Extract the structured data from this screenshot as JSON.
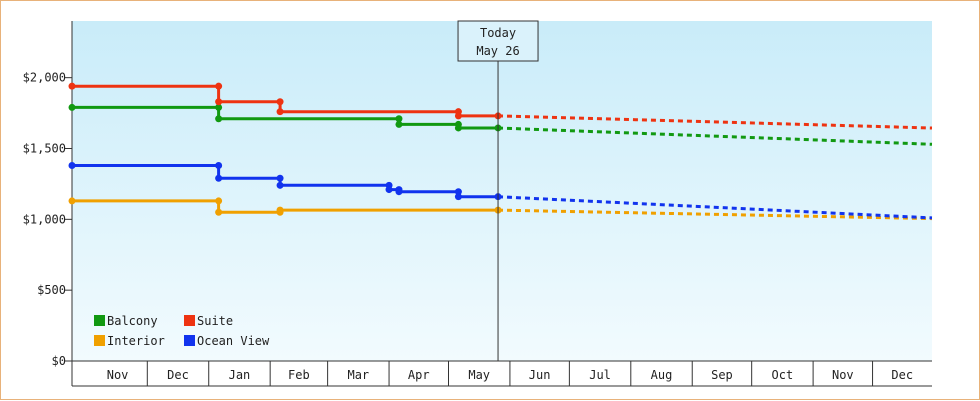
{
  "chart_data": {
    "type": "line",
    "title": "",
    "xlabel": "",
    "ylabel": "",
    "ylim": [
      0,
      2400
    ],
    "y_ticks": [
      0,
      500,
      1000,
      1500,
      2000
    ],
    "y_tick_labels": [
      "$0",
      "$500",
      "$1,000",
      "$1,500",
      "$2,000"
    ],
    "x_domain": [
      "2019-10-24",
      "2020-12-31"
    ],
    "months": [
      {
        "label": "Nov",
        "start": "2019-11-01"
      },
      {
        "label": "Dec",
        "start": "2019-12-01"
      },
      {
        "label": "Jan",
        "start": "2020-01-01"
      },
      {
        "label": "Feb",
        "start": "2020-02-01"
      },
      {
        "label": "Mar",
        "start": "2020-03-01"
      },
      {
        "label": "Apr",
        "start": "2020-04-01"
      },
      {
        "label": "May",
        "start": "2020-05-01"
      },
      {
        "label": "Jun",
        "start": "2020-06-01"
      },
      {
        "label": "Jul",
        "start": "2020-07-01"
      },
      {
        "label": "Aug",
        "start": "2020-08-01"
      },
      {
        "label": "Sep",
        "start": "2020-09-01"
      },
      {
        "label": "Oct",
        "start": "2020-10-01"
      },
      {
        "label": "Nov",
        "start": "2020-11-01"
      },
      {
        "label": "Dec",
        "start": "2020-12-01"
      }
    ],
    "today": {
      "label_line1": "Today",
      "label_line2": "May 26",
      "date": "2020-05-26"
    },
    "grid": false,
    "legend_position": "bottom-left",
    "series": [
      {
        "name": "Balcony",
        "color": "#119911",
        "points": [
          {
            "x": "2019-10-24",
            "y": 1790
          },
          {
            "x": "2020-01-06",
            "y": 1790
          },
          {
            "x": "2020-01-06",
            "y": 1710
          },
          {
            "x": "2020-04-06",
            "y": 1710
          },
          {
            "x": "2020-04-06",
            "y": 1670
          },
          {
            "x": "2020-05-06",
            "y": 1670
          },
          {
            "x": "2020-05-06",
            "y": 1645
          },
          {
            "x": "2020-05-26",
            "y": 1645
          }
        ],
        "forecast": [
          {
            "x": "2020-05-26",
            "y": 1645
          },
          {
            "x": "2020-12-31",
            "y": 1530
          }
        ]
      },
      {
        "name": "Suite",
        "color": "#ee3311",
        "points": [
          {
            "x": "2019-10-24",
            "y": 1940
          },
          {
            "x": "2020-01-06",
            "y": 1940
          },
          {
            "x": "2020-01-06",
            "y": 1830
          },
          {
            "x": "2020-02-06",
            "y": 1830
          },
          {
            "x": "2020-02-06",
            "y": 1760
          },
          {
            "x": "2020-05-06",
            "y": 1760
          },
          {
            "x": "2020-05-06",
            "y": 1730
          },
          {
            "x": "2020-05-26",
            "y": 1730
          }
        ],
        "forecast": [
          {
            "x": "2020-05-26",
            "y": 1730
          },
          {
            "x": "2020-12-31",
            "y": 1645
          }
        ]
      },
      {
        "name": "Interior",
        "color": "#f0a000",
        "points": [
          {
            "x": "2019-10-24",
            "y": 1130
          },
          {
            "x": "2020-01-06",
            "y": 1130
          },
          {
            "x": "2020-01-06",
            "y": 1050
          },
          {
            "x": "2020-02-06",
            "y": 1050
          },
          {
            "x": "2020-02-06",
            "y": 1065
          },
          {
            "x": "2020-05-26",
            "y": 1065
          }
        ],
        "forecast": [
          {
            "x": "2020-05-26",
            "y": 1065
          },
          {
            "x": "2020-12-31",
            "y": 1005
          }
        ]
      },
      {
        "name": "Ocean View",
        "color": "#1133ee",
        "points": [
          {
            "x": "2019-10-24",
            "y": 1380
          },
          {
            "x": "2020-01-06",
            "y": 1380
          },
          {
            "x": "2020-01-06",
            "y": 1290
          },
          {
            "x": "2020-02-06",
            "y": 1290
          },
          {
            "x": "2020-02-06",
            "y": 1240
          },
          {
            "x": "2020-04-01",
            "y": 1240
          },
          {
            "x": "2020-04-01",
            "y": 1210
          },
          {
            "x": "2020-04-06",
            "y": 1210
          },
          {
            "x": "2020-04-06",
            "y": 1195
          },
          {
            "x": "2020-05-06",
            "y": 1195
          },
          {
            "x": "2020-05-06",
            "y": 1160
          },
          {
            "x": "2020-05-26",
            "y": 1160
          }
        ],
        "forecast": [
          {
            "x": "2020-05-26",
            "y": 1160
          },
          {
            "x": "2020-12-31",
            "y": 1010
          }
        ]
      }
    ],
    "legend": [
      {
        "name": "Balcony",
        "color": "#119911"
      },
      {
        "name": "Suite",
        "color": "#ee3311"
      },
      {
        "name": "Interior",
        "color": "#f0a000"
      },
      {
        "name": "Ocean View",
        "color": "#1133ee"
      }
    ]
  }
}
